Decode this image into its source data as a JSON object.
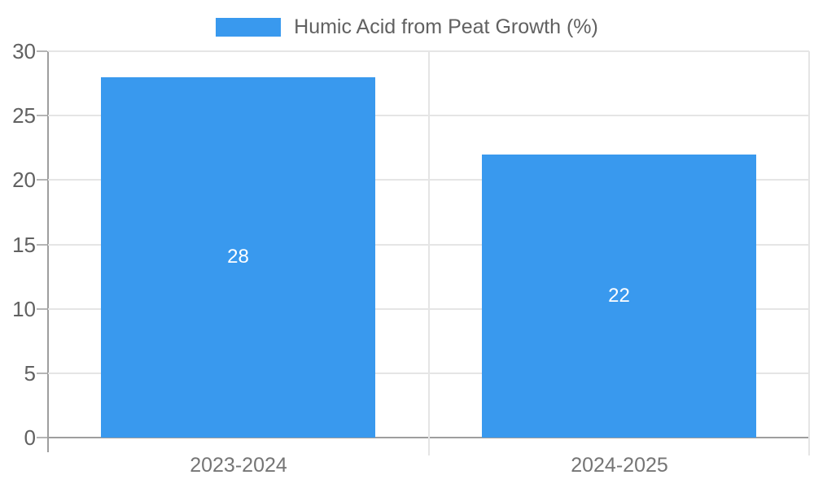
{
  "chart_data": {
    "type": "bar",
    "title": "",
    "legend": "Humic Acid from Peat Growth (%)",
    "legend_position": "top-center",
    "categories": [
      "2023-2024",
      "2024-2025"
    ],
    "values": [
      28,
      22
    ],
    "bar_labels": [
      "28",
      "22"
    ],
    "xlabel": "",
    "ylabel": "",
    "ylim": [
      0,
      30
    ],
    "yticks": [
      0,
      5,
      10,
      15,
      20,
      25,
      30
    ],
    "grid": true,
    "colors": {
      "bar": "#3999EE",
      "grid": "#E5E5E5",
      "axis": "#9E9E9E",
      "tick": "#B5B5B5",
      "y_label": "#616161",
      "category_label": "#757575",
      "bar_label": "#FFFFFF",
      "legend_text": "#616161",
      "background": "#FFFFFF"
    }
  }
}
